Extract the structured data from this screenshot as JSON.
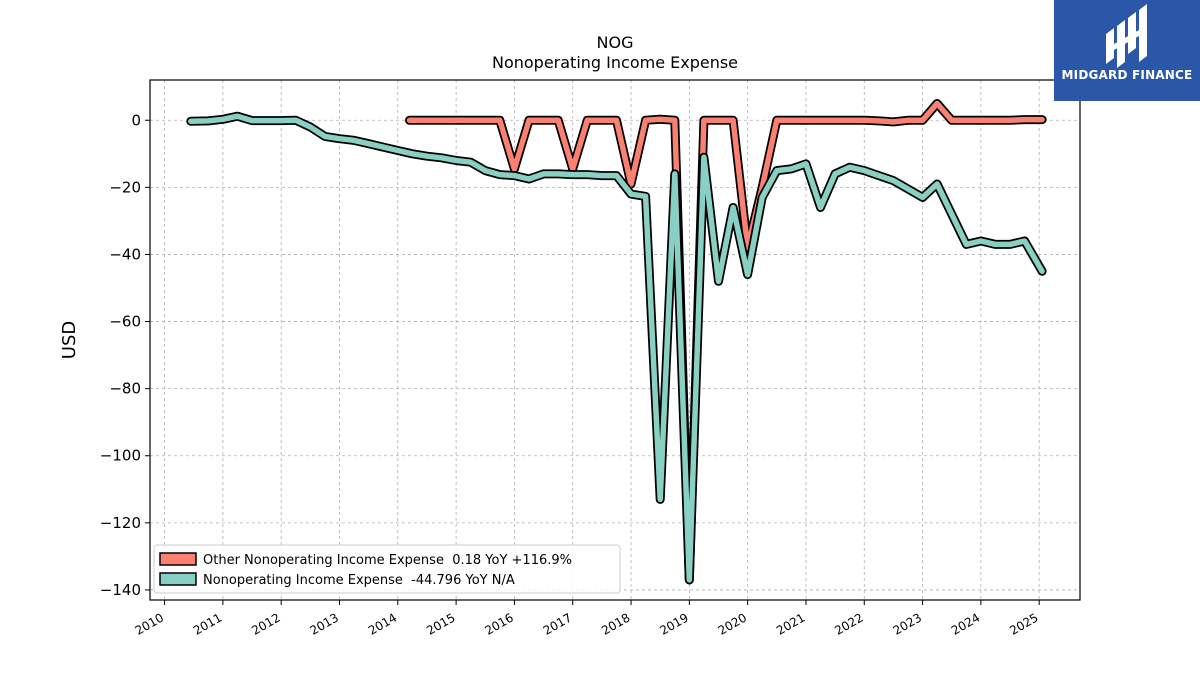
{
  "brand": {
    "name": "MIDGARD FINANCE",
    "bg_color": "#2a57a8",
    "text_color": "#ffffff"
  },
  "chart_data": {
    "type": "line",
    "title": "NOG",
    "subtitle": "Nonoperating Income Expense",
    "xlabel": "",
    "ylabel": "USD",
    "xlim": [
      2009.75,
      2025.7
    ],
    "ylim": [
      -143,
      12
    ],
    "xticks": [
      2010,
      2011,
      2012,
      2013,
      2014,
      2015,
      2016,
      2017,
      2018,
      2019,
      2020,
      2021,
      2022,
      2023,
      2024,
      2025
    ],
    "yticks": [
      0,
      -20,
      -40,
      -60,
      -80,
      -100,
      -120,
      -140
    ],
    "ytick_labels": [
      "0",
      "−20",
      "−40",
      "−60",
      "−80",
      "−100",
      "−120",
      "−140"
    ],
    "grid": true,
    "legend_position": "lower-left",
    "series": [
      {
        "name": "Other Nonoperating Income Expense  0.18 YoY +116.9%",
        "color": "#fa8072",
        "x": [
          2014.2,
          2014.5,
          2014.75,
          2015.0,
          2015.25,
          2015.5,
          2015.75,
          2016.0,
          2016.25,
          2016.5,
          2016.75,
          2017.0,
          2017.25,
          2017.5,
          2017.75,
          2018.0,
          2018.25,
          2018.5,
          2018.75,
          2019.0,
          2019.25,
          2019.5,
          2019.75,
          2020.0,
          2020.25,
          2020.5,
          2020.75,
          2021.0,
          2021.25,
          2021.5,
          2021.75,
          2022.0,
          2022.25,
          2022.5,
          2022.75,
          2023.0,
          2023.25,
          2023.5,
          2023.75,
          2024.0,
          2024.25,
          2024.5,
          2024.75,
          2025.05
        ],
        "y": [
          0,
          0,
          0,
          0,
          0,
          0,
          0,
          -14.5,
          0,
          0,
          0,
          -14.5,
          0,
          0,
          0,
          -19,
          0,
          0.3,
          0,
          -137,
          0,
          0,
          0,
          -38,
          -20,
          0,
          0,
          0,
          0,
          0,
          0,
          0,
          -0.2,
          -0.5,
          0,
          0,
          5,
          0,
          0,
          0,
          0,
          0,
          0.2,
          0.2
        ]
      },
      {
        "name": "Nonoperating Income Expense  -44.796 YoY N/A",
        "color": "#88d0c4",
        "x": [
          2010.45,
          2010.75,
          2011.0,
          2011.25,
          2011.5,
          2011.75,
          2012.0,
          2012.25,
          2012.5,
          2012.75,
          2013.0,
          2013.25,
          2013.5,
          2013.75,
          2014.0,
          2014.25,
          2014.5,
          2014.75,
          2015.0,
          2015.25,
          2015.5,
          2015.75,
          2016.0,
          2016.25,
          2016.5,
          2016.75,
          2017.0,
          2017.25,
          2017.5,
          2017.75,
          2018.0,
          2018.25,
          2018.5,
          2018.75,
          2019.0,
          2019.25,
          2019.5,
          2019.75,
          2020.0,
          2020.25,
          2020.5,
          2020.75,
          2021.0,
          2021.25,
          2021.5,
          2021.75,
          2022.0,
          2022.25,
          2022.5,
          2022.75,
          2023.0,
          2023.25,
          2023.5,
          2023.75,
          2024.0,
          2024.25,
          2024.5,
          2024.75,
          2025.05
        ],
        "y": [
          -0.3,
          -0.2,
          0.3,
          1.2,
          -0.1,
          -0.1,
          -0.1,
          0,
          -2,
          -4.8,
          -5.5,
          -6,
          -7,
          -8,
          -9,
          -10,
          -10.7,
          -11.2,
          -12,
          -12.5,
          -15,
          -16.2,
          -16.5,
          -17.5,
          -16,
          -16,
          -16.2,
          -16.2,
          -16.5,
          -16.5,
          -22,
          -22.7,
          -113,
          -16,
          -137,
          -11,
          -48,
          -26,
          -46,
          -23,
          -15,
          -14.5,
          -13,
          -26,
          -16,
          -14,
          -15,
          -16.5,
          -18,
          -20.5,
          -23,
          -19,
          -28,
          -37,
          -36,
          -37,
          -37,
          -36,
          -45
        ]
      }
    ]
  }
}
